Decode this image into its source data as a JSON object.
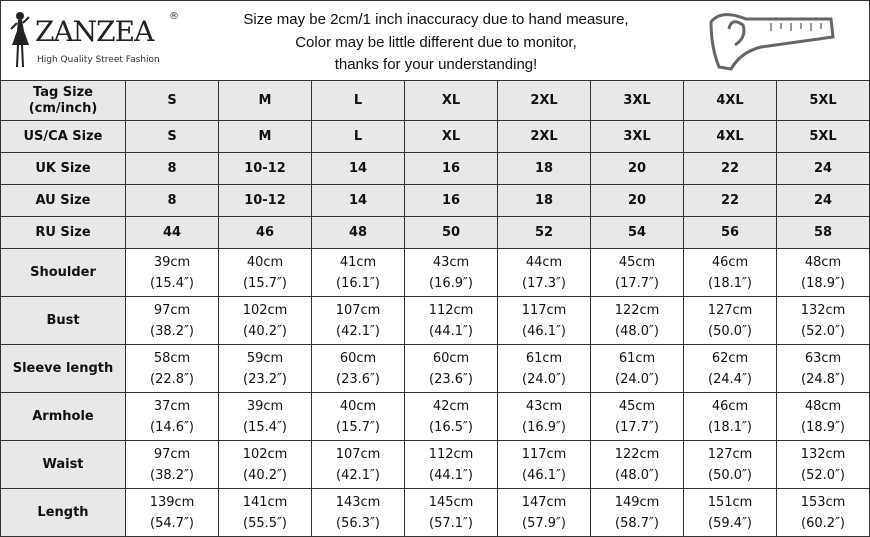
{
  "brand": {
    "name": "ZANZEA",
    "registered": "®",
    "tagline": "High Quality Street Fashion"
  },
  "notice": [
    "Size may be 2cm/1 inch inaccuracy due to hand measure,",
    "Color may be little different due to monitor,",
    "thanks for your understanding!"
  ],
  "icons": {
    "logo": "woman-silhouette-icon",
    "measure": "measuring-tape-icon"
  },
  "colors": {
    "label_bg": "#e8e8e8",
    "border": "#333333"
  },
  "size_rows": [
    {
      "label": "Tag Size (cm/inch)",
      "values": [
        "S",
        "M",
        "L",
        "XL",
        "2XL",
        "3XL",
        "4XL",
        "5XL"
      ]
    },
    {
      "label": "US/CA Size",
      "values": [
        "S",
        "M",
        "L",
        "XL",
        "2XL",
        "3XL",
        "4XL",
        "5XL"
      ]
    },
    {
      "label": "UK Size",
      "values": [
        "8",
        "10-12",
        "14",
        "16",
        "18",
        "20",
        "22",
        "24"
      ]
    },
    {
      "label": "AU Size",
      "values": [
        "8",
        "10-12",
        "14",
        "16",
        "18",
        "20",
        "22",
        "24"
      ]
    },
    {
      "label": "RU Size",
      "values": [
        "44",
        "46",
        "48",
        "50",
        "52",
        "54",
        "56",
        "58"
      ]
    }
  ],
  "measure_rows": [
    {
      "label": "Shoulder",
      "cm": [
        "39cm",
        "40cm",
        "41cm",
        "43cm",
        "44cm",
        "45cm",
        "46cm",
        "48cm"
      ],
      "inch": [
        "(15.4″)",
        "(15.7″)",
        "(16.1″)",
        "(16.9″)",
        "(17.3″)",
        "(17.7″)",
        "(18.1″)",
        "(18.9″)"
      ]
    },
    {
      "label": "Bust",
      "cm": [
        "97cm",
        "102cm",
        "107cm",
        "112cm",
        "117cm",
        "122cm",
        "127cm",
        "132cm"
      ],
      "inch": [
        "(38.2″)",
        "(40.2″)",
        "(42.1″)",
        "(44.1″)",
        "(46.1″)",
        "(48.0″)",
        "(50.0″)",
        "(52.0″)"
      ]
    },
    {
      "label": "Sleeve length",
      "cm": [
        "58cm",
        "59cm",
        "60cm",
        "60cm",
        "61cm",
        "61cm",
        "62cm",
        "63cm"
      ],
      "inch": [
        "(22.8″)",
        "(23.2″)",
        "(23.6″)",
        "(23.6″)",
        "(24.0″)",
        "(24.0″)",
        "(24.4″)",
        "(24.8″)"
      ]
    },
    {
      "label": "Armhole",
      "cm": [
        "37cm",
        "39cm",
        "40cm",
        "42cm",
        "43cm",
        "45cm",
        "46cm",
        "48cm"
      ],
      "inch": [
        "(14.6″)",
        "(15.4″)",
        "(15.7″)",
        "(16.5″)",
        "(16.9″)",
        "(17.7″)",
        "(18.1″)",
        "(18.9″)"
      ]
    },
    {
      "label": "Waist",
      "cm": [
        "97cm",
        "102cm",
        "107cm",
        "112cm",
        "117cm",
        "122cm",
        "127cm",
        "132cm"
      ],
      "inch": [
        "(38.2″)",
        "(40.2″)",
        "(42.1″)",
        "(44.1″)",
        "(46.1″)",
        "(48.0″)",
        "(50.0″)",
        "(52.0″)"
      ]
    },
    {
      "label": "Length",
      "cm": [
        "139cm",
        "141cm",
        "143cm",
        "145cm",
        "147cm",
        "149cm",
        "151cm",
        "153cm"
      ],
      "inch": [
        "(54.7″)",
        "(55.5″)",
        "(56.3″)",
        "(57.1″)",
        "(57.9″)",
        "(58.7″)",
        "(59.4″)",
        "(60.2″)"
      ]
    }
  ]
}
